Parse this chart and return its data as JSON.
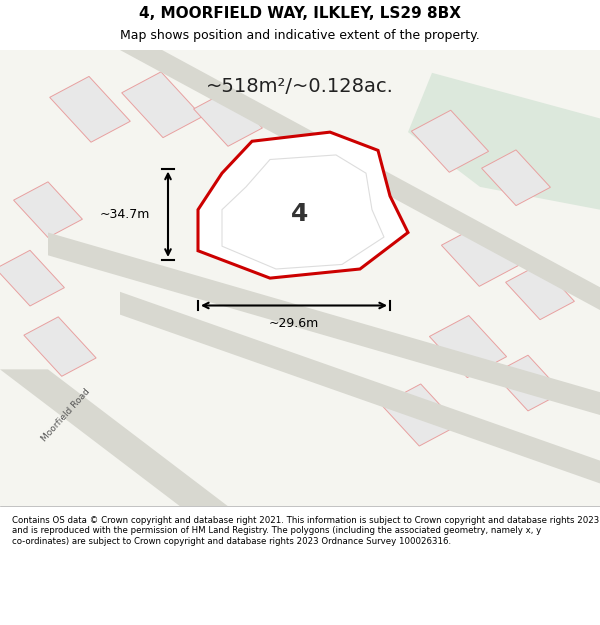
{
  "title": "4, MOORFIELD WAY, ILKLEY, LS29 8BX",
  "subtitle": "Map shows position and indicative extent of the property.",
  "area_text": "~518m²/~0.128ac.",
  "width_label": "~29.6m",
  "height_label": "~34.7m",
  "number_label": "4",
  "footer": "Contains OS data © Crown copyright and database right 2021. This information is subject to Crown copyright and database rights 2023 and is reproduced with the permission of HM Land Registry. The polygons (including the associated geometry, namely x, y co-ordinates) are subject to Crown copyright and database rights 2023 Ordnance Survey 100026316.",
  "bg_color": "#f2f2f0",
  "map_bg": "#f5f5f0",
  "highlight_fill": "#e8ede8",
  "road_color": "#c8c8c8",
  "plot_edge_color": "#cc0000",
  "plot_fill": "#ffffff",
  "neighbor_fill": "#e8e8e8",
  "neighbor_edge": "#e8a0a0",
  "road_label": "Moorfield Road",
  "green_fill": "#dce8dc"
}
